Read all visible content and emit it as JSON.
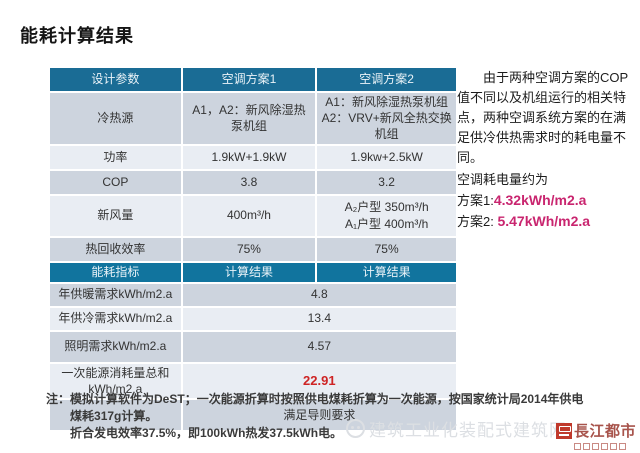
{
  "title": "能耗计算结果",
  "colors": {
    "header1_bg": "#1a6c95",
    "header2_bg": "#11749e",
    "row_dark": "#cdd4de",
    "row_light": "#e9edf3",
    "highlight_red": "#ce2424",
    "accent_magenta": "#c9256f",
    "logo_red": "#a8544c"
  },
  "table": {
    "header1": [
      "设计参数",
      "空调方案1",
      "空调方案2"
    ],
    "rows_params": [
      {
        "label": "冷热源",
        "v1": "A1，A2：新风除湿热泵机组",
        "v2": "A1：新风除湿热泵机组\nA2：VRV+新风全热交换机组"
      },
      {
        "label": "功率",
        "v1": "1.9kW+1.9kW",
        "v2": "1.9kw+2.5kW"
      },
      {
        "label": "COP",
        "v1": "3.8",
        "v2": "3.2"
      },
      {
        "label": "新风量",
        "v1": "400m³/h",
        "v2": "A₂户型 350m³/h\nA₁户型 400m³/h"
      },
      {
        "label": "热回收效率",
        "v1": "75%",
        "v2": "75%"
      }
    ],
    "header2": [
      "能耗指标",
      "计算结果",
      "计算结果"
    ],
    "rows_results": [
      {
        "label": "年供暖需求kWh/m2.a",
        "value": "4.8"
      },
      {
        "label": "年供冷需求kWh/m2.a",
        "value": "13.4"
      },
      {
        "label": "照明需求kWh/m2.a",
        "value": "4.57"
      },
      {
        "label": "一次能源消耗量总和\nkWh/m2.a",
        "value": "22.91"
      },
      {
        "label": "",
        "value": "满足导则要求"
      }
    ]
  },
  "side_note": {
    "paragraph": "由于两种空调方案的COP值不同以及机组运行的相关特点，两种空调系统方案的在满足供冷供热需求时的耗电量不同。",
    "subtitle": "空调耗电量约为",
    "scheme1_label": "方案1:",
    "scheme1_value": "4.32kWh/m2.a",
    "scheme2_label": "方案2: ",
    "scheme2_value": "5.47kWh/m2.a"
  },
  "footnote": {
    "prefix": "注：",
    "line1": "模拟计算软件为DeST；一次能源折算时按照供电煤耗折算为一次能源，按国家统计局2014年供电煤耗317g计算。",
    "line2": "折合发电效率37.5%，即100kWh热发37.5kWh电。"
  },
  "footer": {
    "watermark_text": "建筑工业化装配式建筑网",
    "logo_text": "長江都市"
  }
}
